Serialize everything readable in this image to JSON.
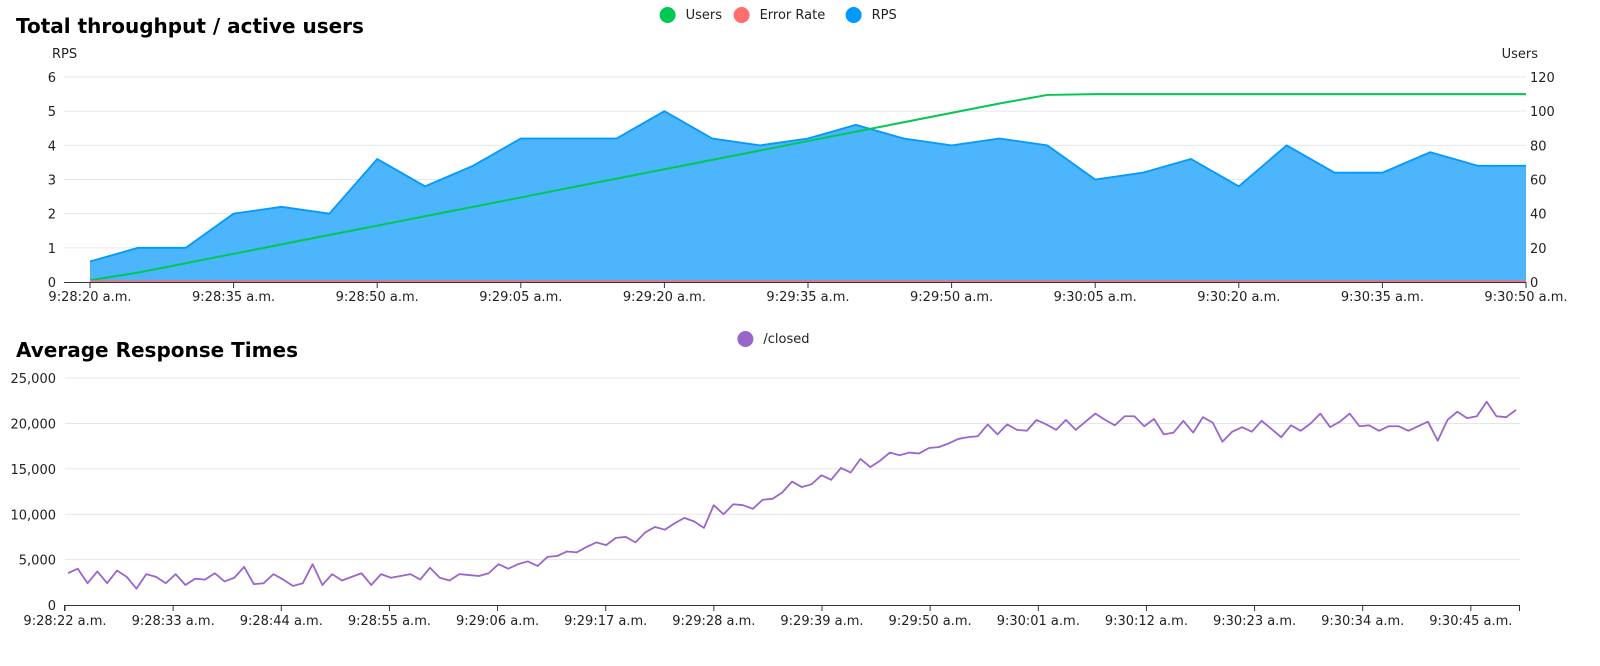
{
  "chart_data": [
    {
      "type": "area",
      "title": "Total throughput / active users",
      "ylabel": "RPS",
      "y2label": "Users",
      "ylim": [
        0,
        6
      ],
      "y2lim": [
        0,
        120
      ],
      "yticks": [
        "0",
        "1",
        "2",
        "3",
        "4",
        "5",
        "6"
      ],
      "y2ticks": [
        "0",
        "20",
        "40",
        "60",
        "80",
        "100",
        "120"
      ],
      "x_start_seconds": 20,
      "x_end_seconds": 170,
      "xtick_seconds": [
        20,
        35,
        50,
        65,
        80,
        95,
        110,
        125,
        140,
        155,
        170
      ],
      "xtick_labels": [
        "9:28:20 a.m.",
        "9:28:35 a.m.",
        "9:28:50 a.m.",
        "9:29:05 a.m.",
        "9:29:20 a.m.",
        "9:29:35 a.m.",
        "9:29:50 a.m.",
        "9:30:05 a.m.",
        "9:30:20 a.m.",
        "9:30:35 a.m.",
        "9:30:50 a.m."
      ],
      "legend_position": "top-center",
      "grid": true,
      "legend": [
        {
          "name": "Users",
          "color": "#00c853"
        },
        {
          "name": "Error Rate",
          "color": "#ff6d6d"
        },
        {
          "name": "RPS",
          "color": "#0099ff"
        }
      ],
      "series": [
        {
          "name": "RPS",
          "axis": "left",
          "style": "area",
          "color": "#0099ff",
          "fill": "#4db5fc",
          "x": [
            20,
            25,
            30,
            35,
            40,
            45,
            50,
            55,
            60,
            65,
            70,
            75,
            80,
            85,
            90,
            95,
            100,
            105,
            110,
            115,
            120,
            125,
            130,
            135,
            140,
            145,
            150,
            155,
            160,
            165,
            170
          ],
          "y": [
            0.6,
            1.0,
            1.0,
            2.0,
            2.2,
            2.0,
            3.6,
            2.8,
            3.4,
            4.2,
            4.2,
            4.2,
            5.0,
            4.2,
            4.0,
            4.2,
            4.6,
            4.2,
            4.0,
            4.2,
            4.0,
            3.0,
            3.2,
            3.6,
            2.8,
            4.0,
            3.2,
            3.2,
            3.8,
            3.4,
            3.4
          ]
        },
        {
          "name": "Users",
          "axis": "right",
          "style": "line",
          "color": "#00c853",
          "x": [
            20,
            25,
            30,
            35,
            40,
            45,
            50,
            55,
            60,
            65,
            70,
            75,
            80,
            85,
            90,
            95,
            100,
            105,
            110,
            115,
            118,
            120,
            125,
            130,
            135,
            140,
            145,
            150,
            155,
            160,
            165,
            170
          ],
          "y": [
            1,
            5.5,
            11,
            16.5,
            22,
            27.5,
            33,
            38.5,
            44,
            49.5,
            55,
            60.5,
            66,
            71.5,
            77,
            82.5,
            88,
            93.5,
            99,
            104.5,
            107.5,
            109.5,
            110,
            110,
            110,
            110,
            110,
            110,
            110,
            110,
            110,
            110
          ]
        },
        {
          "name": "Error Rate",
          "axis": "left",
          "style": "line",
          "color": "#ff6d6d",
          "x": [
            20,
            170
          ],
          "y": [
            0,
            0
          ]
        }
      ]
    },
    {
      "type": "line",
      "title": "Average Response Times",
      "ylim": [
        0,
        27000
      ],
      "yticks": [
        0,
        5000,
        10000,
        15000,
        20000,
        25000
      ],
      "ytick_labels": [
        "0",
        "5,000",
        "10,000",
        "15,000",
        "20,000",
        "25,000"
      ],
      "x_start_seconds": 22,
      "x_end_seconds": 170,
      "xtick_seconds": [
        22,
        33,
        44,
        55,
        66,
        77,
        88,
        99,
        110,
        121,
        132,
        143,
        154,
        165
      ],
      "xtick_labels": [
        "9:28:22 a.m.",
        "9:28:33 a.m.",
        "9:28:44 a.m.",
        "9:28:55 a.m.",
        "9:29:06 a.m.",
        "9:29:17 a.m.",
        "9:29:28 a.m.",
        "9:29:39 a.m.",
        "9:29:50 a.m.",
        "9:30:01 a.m.",
        "9:30:12 a.m.",
        "9:30:23 a.m.",
        "9:30:34 a.m.",
        "9:30:45 a.m."
      ],
      "legend_position": "top-center",
      "grid": true,
      "legend": [
        {
          "name": "/closed",
          "color": "#9966cc"
        }
      ],
      "series": [
        {
          "name": "/closed",
          "color": "#9966cc",
          "values": [
            3500,
            4000,
            2400,
            3700,
            2400,
            3800,
            3100,
            1800,
            3400,
            3100,
            2400,
            3400,
            2200,
            2900,
            2800,
            3500,
            2600,
            3000,
            4200,
            2300,
            2400,
            3400,
            2800,
            2100,
            2400,
            4500,
            2200,
            3400,
            2700,
            3100,
            3500,
            2200,
            3400,
            3000,
            3200,
            3400,
            2800,
            4100,
            3000,
            2700,
            3400,
            3300,
            3200,
            3500,
            4500,
            4000,
            4500,
            4800,
            4300,
            5300,
            5400,
            5900,
            5800,
            6400,
            6900,
            6600,
            7400,
            7500,
            6900,
            8000,
            8600,
            8300,
            9000,
            9600,
            9200,
            8500,
            11000,
            10000,
            11100,
            11000,
            10600,
            11600,
            11700,
            12400,
            13600,
            13000,
            13300,
            14300,
            13800,
            15100,
            14600,
            16100,
            15200,
            15900,
            16800,
            16500,
            16800,
            16700,
            17300,
            17400,
            17800,
            18300,
            18500,
            18600,
            19900,
            18800,
            19900,
            19300,
            19200,
            20400,
            19900,
            19300,
            20400,
            19300,
            20200,
            21100,
            20400,
            19800,
            20800,
            20800,
            19700,
            20500,
            18800,
            19000,
            20300,
            19000,
            20700,
            20100,
            18000,
            19100,
            19600,
            19100,
            20300,
            19400,
            18500,
            19800,
            19200,
            20000,
            21100,
            19600,
            20200,
            21100,
            19700,
            19800,
            19200,
            19700,
            19700,
            19200,
            19700,
            20200,
            18100,
            20400,
            21300,
            20600,
            20800,
            22400,
            20800,
            20700,
            21500
          ]
        }
      ]
    }
  ]
}
